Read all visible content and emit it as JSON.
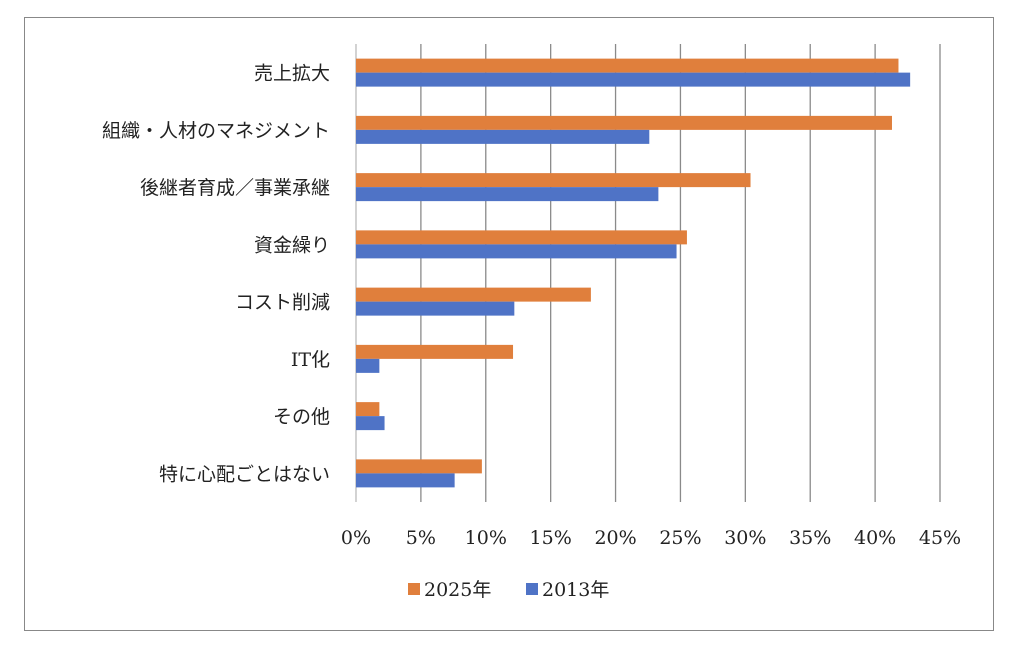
{
  "chart_data": {
    "type": "bar",
    "orientation": "horizontal",
    "categories": [
      "売上拡大",
      "組織・人材のマネジメント",
      "後継者育成／事業承継",
      "資金繰り",
      "コスト削減",
      "IT化",
      "その他",
      "特に心配ごとはない"
    ],
    "series": [
      {
        "name": "2025年",
        "color": "#E07F3C",
        "values": [
          41.8,
          41.3,
          30.4,
          25.5,
          18.1,
          12.1,
          1.8,
          9.7
        ]
      },
      {
        "name": "2013年",
        "color": "#4F73C6",
        "values": [
          42.7,
          22.6,
          23.3,
          24.7,
          12.2,
          1.8,
          2.2,
          7.6
        ]
      }
    ],
    "xlim": [
      0,
      45
    ],
    "x_ticks": [
      "0%",
      "5%",
      "10%",
      "15%",
      "20%",
      "25%",
      "30%",
      "35%",
      "40%",
      "45%"
    ],
    "grid": "vertical",
    "legend": "bottom",
    "unit": "%"
  }
}
